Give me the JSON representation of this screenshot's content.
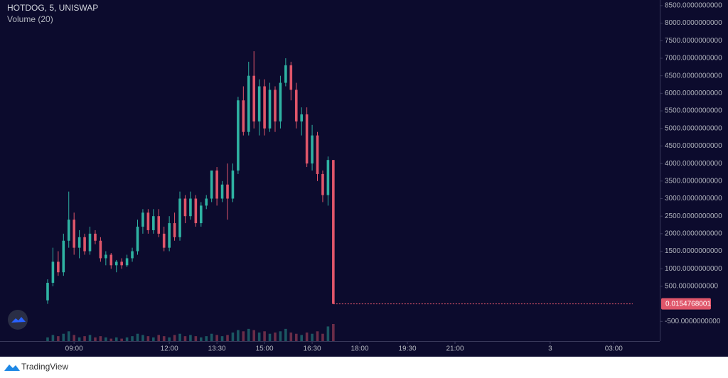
{
  "chart_data": {
    "type": "candlestick",
    "title": "HOTDOG, 5, UNISWAP",
    "subtitle": "Volume (20)",
    "footer": "TradingView",
    "up_color": "#2fb3a3",
    "down_color": "#e0566a",
    "x": [
      490,
      500,
      510,
      520,
      530,
      540,
      550,
      560,
      570,
      580,
      590,
      600,
      610,
      620,
      630,
      640,
      650,
      660,
      670,
      680,
      690,
      700,
      710,
      720,
      730,
      740,
      750,
      760,
      770,
      780,
      790,
      800,
      810,
      820,
      830,
      840,
      850,
      860,
      870,
      880,
      890,
      900,
      910,
      920,
      930,
      940,
      950,
      960,
      970,
      980,
      990,
      1000,
      1010,
      1020,
      1030
    ],
    "open": [
      100,
      600,
      1200,
      900,
      1800,
      2400,
      1600,
      1900,
      1500,
      2000,
      1800,
      1300,
      1400,
      1100,
      1200,
      1100,
      1300,
      1500,
      2200,
      2600,
      2100,
      2500,
      2000,
      1600,
      2300,
      1900,
      3000,
      2500,
      3000,
      2300,
      2800,
      3000,
      3800,
      3000,
      3400,
      3000,
      3800,
      5800,
      4900,
      6500,
      5200,
      6200,
      5000,
      6100,
      5200,
      6300,
      6800,
      6100,
      5200,
      5400,
      4000,
      4800,
      3700,
      3100,
      4100
    ],
    "high": [
      700,
      1600,
      1500,
      2000,
      3200,
      2600,
      2100,
      2000,
      2200,
      2100,
      1900,
      1500,
      1450,
      1250,
      1300,
      1400,
      1600,
      2400,
      2700,
      2700,
      2700,
      2700,
      2200,
      2500,
      2600,
      3200,
      3100,
      3200,
      3100,
      2900,
      3100,
      3800,
      3900,
      3500,
      4000,
      4000,
      5900,
      6200,
      6900,
      7200,
      6400,
      6400,
      6300,
      6200,
      6500,
      7000,
      6900,
      6300,
      5600,
      5600,
      5100,
      4900,
      3800,
      4200,
      4100
    ],
    "low": [
      0,
      500,
      800,
      800,
      1600,
      1400,
      1300,
      1400,
      1400,
      1700,
      1200,
      1100,
      1000,
      900,
      1000,
      1050,
      1200,
      1400,
      2000,
      2000,
      2000,
      1900,
      1500,
      1500,
      1800,
      1800,
      2300,
      2400,
      2200,
      2200,
      2700,
      2900,
      2800,
      2900,
      2400,
      2900,
      3700,
      4800,
      4800,
      5000,
      4800,
      4800,
      4900,
      4900,
      5000,
      6200,
      5800,
      5000,
      4800,
      3900,
      3800,
      3500,
      2900,
      2800,
      0
    ],
    "close": [
      600,
      1200,
      900,
      1800,
      2400,
      1600,
      1900,
      1500,
      2000,
      1800,
      1300,
      1400,
      1100,
      1200,
      1100,
      1300,
      1500,
      2200,
      2600,
      2100,
      2500,
      2000,
      1600,
      2300,
      1900,
      3000,
      2500,
      3000,
      2300,
      2800,
      3000,
      3800,
      3000,
      3400,
      3000,
      3800,
      5800,
      4900,
      6500,
      5200,
      6200,
      5000,
      6100,
      5200,
      6300,
      6800,
      6100,
      5200,
      5400,
      4000,
      4800,
      3700,
      3100,
      4100,
      0
    ],
    "volume": [
      3,
      5,
      4,
      6,
      8,
      5,
      3,
      4,
      5,
      3,
      4,
      3,
      2,
      3,
      2,
      3,
      4,
      6,
      5,
      4,
      3,
      5,
      4,
      3,
      5,
      6,
      4,
      5,
      4,
      3,
      4,
      6,
      5,
      4,
      5,
      7,
      9,
      8,
      10,
      9,
      7,
      8,
      6,
      7,
      8,
      10,
      7,
      6,
      5,
      7,
      6,
      8,
      6,
      12,
      14
    ],
    "last_price": 0.0154768001,
    "xlim": [
      400,
      1647
    ],
    "ylim": [
      -1060,
      8660
    ],
    "xticks": [
      {
        "value": 540,
        "label": "09:00"
      },
      {
        "value": 720,
        "label": "12:00"
      },
      {
        "value": 810,
        "label": "13:30"
      },
      {
        "value": 900,
        "label": "15:00"
      },
      {
        "value": 990,
        "label": "16:30"
      },
      {
        "value": 1080,
        "label": "18:00"
      },
      {
        "value": 1170,
        "label": "19:30"
      },
      {
        "value": 1260,
        "label": "21:00"
      },
      {
        "value": 1440,
        "label": "3"
      },
      {
        "value": 1560,
        "label": "03:00"
      }
    ],
    "yticks": [
      {
        "value": -500,
        "label": "-500.0000000000"
      },
      {
        "value": 500,
        "label": "500.0000000000"
      },
      {
        "value": 1000,
        "label": "1000.0000000000"
      },
      {
        "value": 1500,
        "label": "1500.0000000000"
      },
      {
        "value": 2000,
        "label": "2000.0000000000"
      },
      {
        "value": 2500,
        "label": "2500.0000000000"
      },
      {
        "value": 3000,
        "label": "3000.0000000000"
      },
      {
        "value": 3500,
        "label": "3500.0000000000"
      },
      {
        "value": 4000,
        "label": "4000.0000000000"
      },
      {
        "value": 4500,
        "label": "4500.0000000000"
      },
      {
        "value": 5000,
        "label": "5000.0000000000"
      },
      {
        "value": 5500,
        "label": "5500.0000000000"
      },
      {
        "value": 6000,
        "label": "6000.0000000000"
      },
      {
        "value": 6500,
        "label": "6500.0000000000"
      },
      {
        "value": 7000,
        "label": "7000.0000000000"
      },
      {
        "value": 7500,
        "label": "7500.0000000000"
      },
      {
        "value": 8000,
        "label": "8000.0000000000"
      },
      {
        "value": 8500,
        "label": "8500.0000000000"
      }
    ]
  }
}
